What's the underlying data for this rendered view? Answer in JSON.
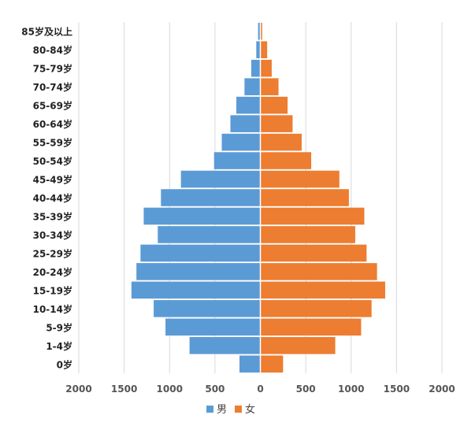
{
  "chart_data": {
    "type": "bar",
    "orientation": "horizontal",
    "categories": [
      "0岁",
      "1-4岁",
      "5-9岁",
      "10-14岁",
      "15-19岁",
      "20-24岁",
      "25-29岁",
      "30-34岁",
      "35-39岁",
      "40-44岁",
      "45-49岁",
      "50-54岁",
      "55-59岁",
      "60-64岁",
      "65-69岁",
      "70-74岁",
      "75-79岁",
      "80-84岁",
      "85岁及以上"
    ],
    "series": [
      {
        "name": "男",
        "color": "#5b9bd5",
        "values": [
          -230,
          -780,
          -1045,
          -1175,
          -1420,
          -1365,
          -1320,
          -1130,
          -1285,
          -1095,
          -875,
          -510,
          -425,
          -330,
          -265,
          -175,
          -100,
          -45,
          -25
        ]
      },
      {
        "name": "女",
        "color": "#ed7d31",
        "values": [
          250,
          825,
          1110,
          1225,
          1375,
          1285,
          1170,
          1045,
          1145,
          975,
          870,
          560,
          455,
          355,
          300,
          200,
          125,
          75,
          20
        ]
      }
    ],
    "x_ticks": [
      "2000",
      "1500",
      "1000",
      "500",
      "0",
      "500",
      "1000",
      "1500",
      "2000"
    ],
    "xlim": [
      -2000,
      2000
    ],
    "grid": true,
    "legend_position": "bottom"
  }
}
